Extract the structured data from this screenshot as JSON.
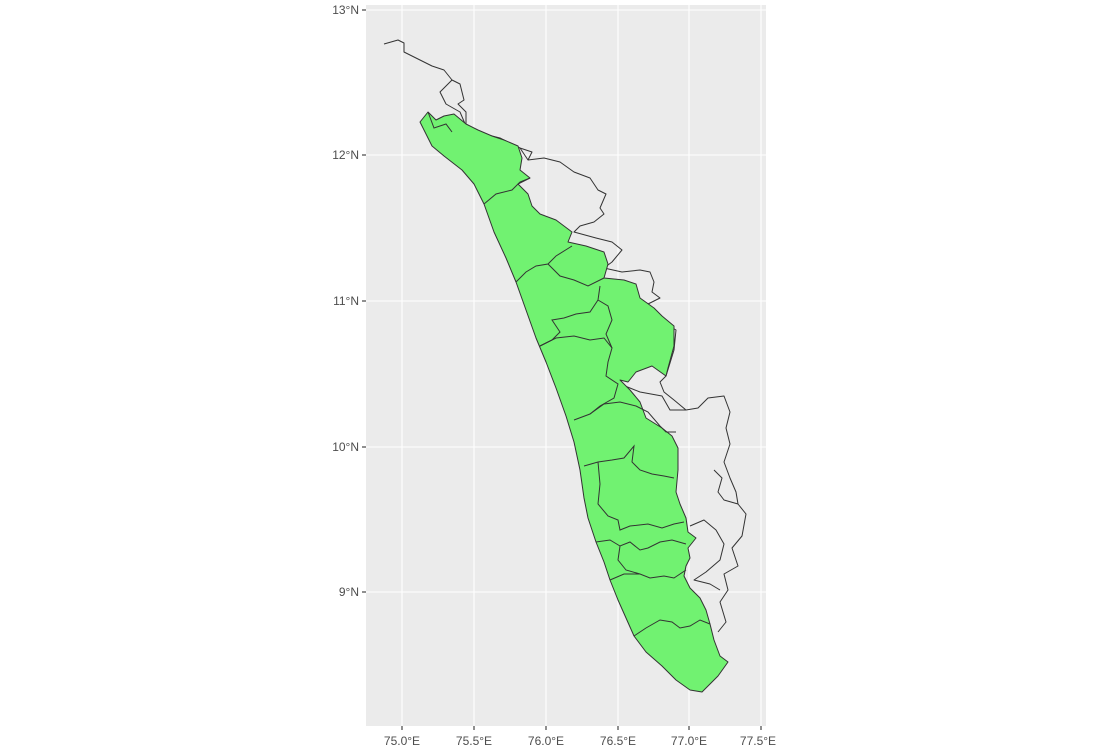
{
  "map": {
    "fill_color": "#71f271",
    "empty_fill": "none",
    "outline_color": "#333333",
    "panel_background": "#ebebeb",
    "grid_color": "#ffffff",
    "y_axis_ticks": [
      "13°N",
      "12°N",
      "11°N",
      "10°N",
      "9°N"
    ],
    "x_axis_ticks": [
      "75.0°E",
      "75.5°E",
      "76.0°E",
      "76.5°E",
      "77.0°E",
      "77.5°E"
    ],
    "highlighted_region": "Kerala"
  }
}
